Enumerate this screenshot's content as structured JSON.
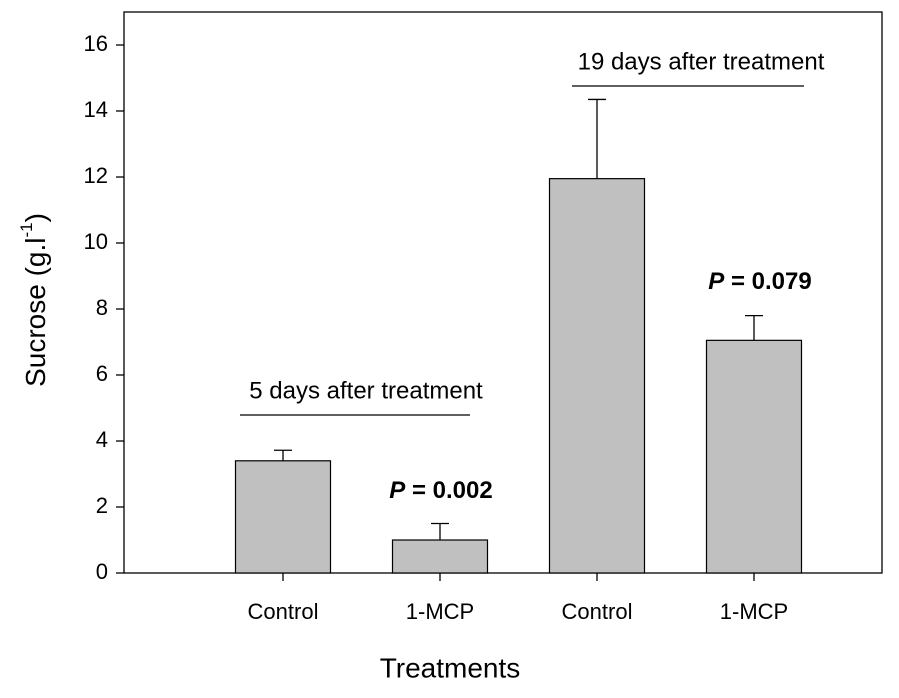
{
  "chart_data": {
    "type": "bar",
    "x_label": "Treatments",
    "y_label": "Sucrose (g.l",
    "y_label_sup": "-1",
    "y_label_end": ")",
    "categories": [
      "Control",
      "1-MCP",
      "Control",
      "1-MCP"
    ],
    "values": [
      3.4,
      1.0,
      11.95,
      7.05
    ],
    "errors": [
      0.32,
      0.5,
      2.4,
      0.75
    ],
    "color": "#c0c0c0",
    "ylim": [
      0,
      17
    ],
    "yticks": [
      0,
      2,
      4,
      6,
      8,
      10,
      12,
      14,
      16
    ],
    "annotations": [
      {
        "text": "5 days after treatment"
      },
      {
        "text": "19 days after treatment"
      },
      {
        "italic": "P",
        "text": " = 0.002"
      },
      {
        "italic": "P",
        "text": " = 0.079"
      }
    ]
  }
}
